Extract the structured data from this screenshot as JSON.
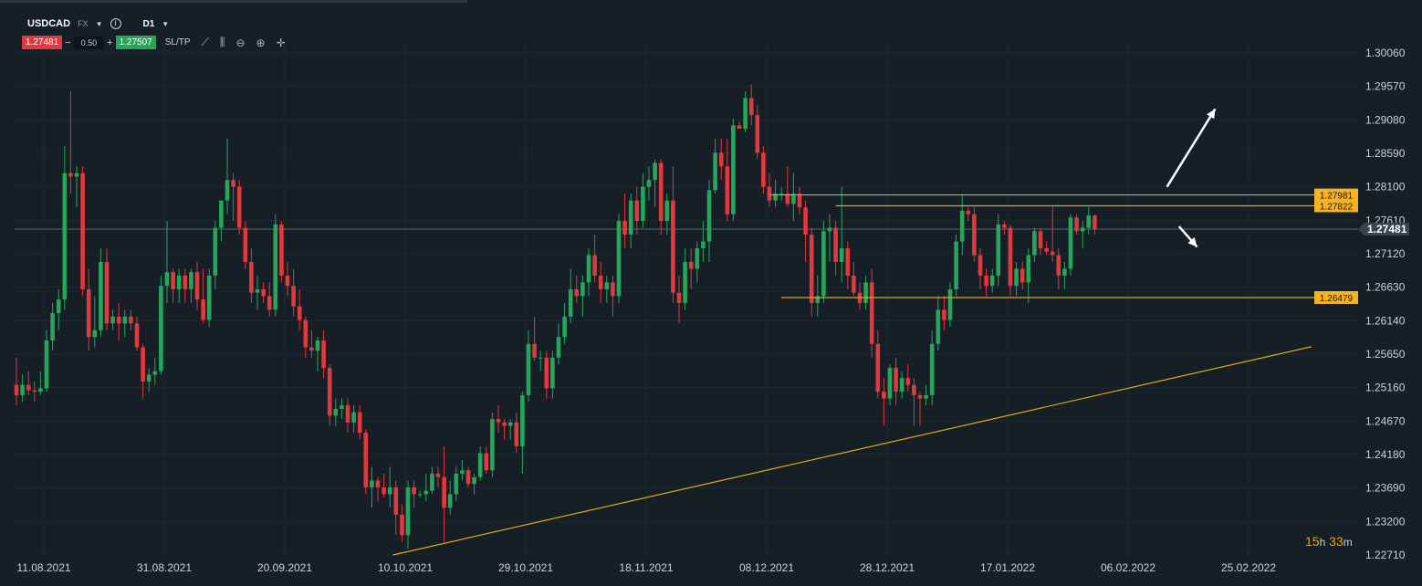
{
  "toolbar": {
    "symbol": "USDCAD",
    "market": "FX",
    "timeframe": "D1",
    "bid": "1.27481",
    "spread": "0.50",
    "ask": "1.27507",
    "sl_tp": "SL/TP",
    "minus": "−",
    "plus": "+"
  },
  "timer": {
    "hours": "15",
    "h": "h",
    "minutes": "33",
    "m": "m"
  },
  "colors": {
    "background": "#161e26",
    "bull": "#26a65b",
    "bear": "#e0393e",
    "trend": "#e0a81c",
    "level_label": "#f5b324",
    "price_label": "#3a434d"
  },
  "chart_data": {
    "type": "candlestick",
    "symbol": "USDCAD",
    "timeframe": "D1",
    "y_ticks": [
      "1.30060",
      "1.29570",
      "1.29080",
      "1.28590",
      "1.28100",
      "1.27610",
      "1.27120",
      "1.26630",
      "1.26140",
      "1.25650",
      "1.25160",
      "1.24670",
      "1.24180",
      "1.23690",
      "1.23200",
      "1.22710"
    ],
    "ylim": [
      1.2271,
      1.3006
    ],
    "x_ticks": [
      "11.08.2021",
      "31.08.2021",
      "20.09.2021",
      "10.10.2021",
      "29.10.2021",
      "18.11.2021",
      "08.12.2021",
      "28.12.2021",
      "17.01.2022",
      "06.02.2022",
      "25.02.2022"
    ],
    "current_price": "1.27481",
    "levels": [
      {
        "label": "1.27981",
        "value": 1.27981,
        "from_index": 125
      },
      {
        "label": "1.27822",
        "value": 1.27822,
        "from_index": 136
      },
      {
        "label": "1.26479",
        "value": 1.26479,
        "from_index": 127
      }
    ],
    "trendline": {
      "from_index": 62.5,
      "from_value": 1.2271,
      "to_index": 215,
      "to_value": 1.2576
    },
    "arrows": [
      {
        "direction": "up",
        "from_index": 191,
        "from_value": 1.281,
        "to_index": 199,
        "to_value": 1.2924
      },
      {
        "direction": "down",
        "from_index": 193,
        "from_value": 1.2752,
        "to_index": 196,
        "to_value": 1.2722
      }
    ],
    "candles": [
      {
        "o": 1.252,
        "h": 1.256,
        "l": 1.249,
        "c": 1.2505
      },
      {
        "o": 1.2505,
        "h": 1.2535,
        "l": 1.2495,
        "c": 1.252
      },
      {
        "o": 1.252,
        "h": 1.254,
        "l": 1.2505,
        "c": 1.2512
      },
      {
        "o": 1.2512,
        "h": 1.2525,
        "l": 1.2495,
        "c": 1.251
      },
      {
        "o": 1.251,
        "h": 1.254,
        "l": 1.2505,
        "c": 1.2515
      },
      {
        "o": 1.2515,
        "h": 1.26,
        "l": 1.251,
        "c": 1.2585
      },
      {
        "o": 1.2585,
        "h": 1.264,
        "l": 1.257,
        "c": 1.2625
      },
      {
        "o": 1.2625,
        "h": 1.266,
        "l": 1.26,
        "c": 1.2645
      },
      {
        "o": 1.2645,
        "h": 1.287,
        "l": 1.263,
        "c": 1.283
      },
      {
        "o": 1.283,
        "h": 1.295,
        "l": 1.28,
        "c": 1.2825
      },
      {
        "o": 1.2825,
        "h": 1.284,
        "l": 1.278,
        "c": 1.283
      },
      {
        "o": 1.283,
        "h": 1.284,
        "l": 1.265,
        "c": 1.266
      },
      {
        "o": 1.266,
        "h": 1.269,
        "l": 1.257,
        "c": 1.259
      },
      {
        "o": 1.259,
        "h": 1.265,
        "l": 1.2575,
        "c": 1.26
      },
      {
        "o": 1.26,
        "h": 1.272,
        "l": 1.259,
        "c": 1.27
      },
      {
        "o": 1.27,
        "h": 1.272,
        "l": 1.26,
        "c": 1.261
      },
      {
        "o": 1.261,
        "h": 1.263,
        "l": 1.26,
        "c": 1.262
      },
      {
        "o": 1.262,
        "h": 1.264,
        "l": 1.2585,
        "c": 1.261
      },
      {
        "o": 1.261,
        "h": 1.263,
        "l": 1.259,
        "c": 1.262
      },
      {
        "o": 1.262,
        "h": 1.263,
        "l": 1.26,
        "c": 1.261
      },
      {
        "o": 1.261,
        "h": 1.262,
        "l": 1.257,
        "c": 1.2575
      },
      {
        "o": 1.2575,
        "h": 1.258,
        "l": 1.25,
        "c": 1.2525
      },
      {
        "o": 1.2525,
        "h": 1.2545,
        "l": 1.251,
        "c": 1.2535
      },
      {
        "o": 1.2535,
        "h": 1.256,
        "l": 1.252,
        "c": 1.254
      },
      {
        "o": 1.254,
        "h": 1.268,
        "l": 1.2535,
        "c": 1.2665
      },
      {
        "o": 1.2665,
        "h": 1.276,
        "l": 1.264,
        "c": 1.2685
      },
      {
        "o": 1.2685,
        "h": 1.269,
        "l": 1.264,
        "c": 1.266
      },
      {
        "o": 1.266,
        "h": 1.269,
        "l": 1.264,
        "c": 1.268
      },
      {
        "o": 1.268,
        "h": 1.269,
        "l": 1.264,
        "c": 1.266
      },
      {
        "o": 1.266,
        "h": 1.269,
        "l": 1.264,
        "c": 1.2685
      },
      {
        "o": 1.2685,
        "h": 1.27,
        "l": 1.263,
        "c": 1.2645
      },
      {
        "o": 1.2645,
        "h": 1.269,
        "l": 1.261,
        "c": 1.2615
      },
      {
        "o": 1.2615,
        "h": 1.269,
        "l": 1.2605,
        "c": 1.268
      },
      {
        "o": 1.268,
        "h": 1.276,
        "l": 1.266,
        "c": 1.275
      },
      {
        "o": 1.275,
        "h": 1.279,
        "l": 1.273,
        "c": 1.279
      },
      {
        "o": 1.279,
        "h": 1.288,
        "l": 1.277,
        "c": 1.282
      },
      {
        "o": 1.282,
        "h": 1.283,
        "l": 1.276,
        "c": 1.281
      },
      {
        "o": 1.281,
        "h": 1.282,
        "l": 1.274,
        "c": 1.275
      },
      {
        "o": 1.275,
        "h": 1.276,
        "l": 1.269,
        "c": 1.27
      },
      {
        "o": 1.27,
        "h": 1.272,
        "l": 1.264,
        "c": 1.2655
      },
      {
        "o": 1.2655,
        "h": 1.268,
        "l": 1.263,
        "c": 1.266
      },
      {
        "o": 1.266,
        "h": 1.267,
        "l": 1.264,
        "c": 1.265
      },
      {
        "o": 1.265,
        "h": 1.267,
        "l": 1.262,
        "c": 1.263
      },
      {
        "o": 1.263,
        "h": 1.277,
        "l": 1.262,
        "c": 1.2755
      },
      {
        "o": 1.2755,
        "h": 1.276,
        "l": 1.267,
        "c": 1.268
      },
      {
        "o": 1.268,
        "h": 1.27,
        "l": 1.265,
        "c": 1.2665
      },
      {
        "o": 1.2665,
        "h": 1.269,
        "l": 1.262,
        "c": 1.2635
      },
      {
        "o": 1.2635,
        "h": 1.266,
        "l": 1.26,
        "c": 1.2615
      },
      {
        "o": 1.2615,
        "h": 1.262,
        "l": 1.256,
        "c": 1.2575
      },
      {
        "o": 1.2575,
        "h": 1.26,
        "l": 1.256,
        "c": 1.257
      },
      {
        "o": 1.257,
        "h": 1.259,
        "l": 1.254,
        "c": 1.2585
      },
      {
        "o": 1.2585,
        "h": 1.26,
        "l": 1.253,
        "c": 1.2545
      },
      {
        "o": 1.2545,
        "h": 1.255,
        "l": 1.246,
        "c": 1.2475
      },
      {
        "o": 1.2475,
        "h": 1.25,
        "l": 1.246,
        "c": 1.2485
      },
      {
        "o": 1.2485,
        "h": 1.25,
        "l": 1.247,
        "c": 1.249
      },
      {
        "o": 1.249,
        "h": 1.25,
        "l": 1.245,
        "c": 1.2465
      },
      {
        "o": 1.2465,
        "h": 1.249,
        "l": 1.245,
        "c": 1.248
      },
      {
        "o": 1.248,
        "h": 1.249,
        "l": 1.244,
        "c": 1.245
      },
      {
        "o": 1.245,
        "h": 1.2455,
        "l": 1.236,
        "c": 1.237
      },
      {
        "o": 1.237,
        "h": 1.24,
        "l": 1.234,
        "c": 1.238
      },
      {
        "o": 1.238,
        "h": 1.2385,
        "l": 1.235,
        "c": 1.237
      },
      {
        "o": 1.237,
        "h": 1.239,
        "l": 1.2355,
        "c": 1.236
      },
      {
        "o": 1.236,
        "h": 1.24,
        "l": 1.234,
        "c": 1.237
      },
      {
        "o": 1.237,
        "h": 1.238,
        "l": 1.23,
        "c": 1.233
      },
      {
        "o": 1.233,
        "h": 1.2345,
        "l": 1.229,
        "c": 1.23
      },
      {
        "o": 1.23,
        "h": 1.238,
        "l": 1.228,
        "c": 1.237
      },
      {
        "o": 1.237,
        "h": 1.238,
        "l": 1.234,
        "c": 1.236
      },
      {
        "o": 1.236,
        "h": 1.2365,
        "l": 1.2355,
        "c": 1.236
      },
      {
        "o": 1.236,
        "h": 1.239,
        "l": 1.235,
        "c": 1.2365
      },
      {
        "o": 1.2365,
        "h": 1.24,
        "l": 1.236,
        "c": 1.239
      },
      {
        "o": 1.239,
        "h": 1.24,
        "l": 1.237,
        "c": 1.2385
      },
      {
        "o": 1.2385,
        "h": 1.243,
        "l": 1.229,
        "c": 1.234
      },
      {
        "o": 1.234,
        "h": 1.238,
        "l": 1.233,
        "c": 1.236
      },
      {
        "o": 1.236,
        "h": 1.24,
        "l": 1.235,
        "c": 1.239
      },
      {
        "o": 1.239,
        "h": 1.241,
        "l": 1.238,
        "c": 1.2395
      },
      {
        "o": 1.2395,
        "h": 1.24,
        "l": 1.237,
        "c": 1.2375
      },
      {
        "o": 1.2375,
        "h": 1.239,
        "l": 1.236,
        "c": 1.2385
      },
      {
        "o": 1.2385,
        "h": 1.243,
        "l": 1.238,
        "c": 1.242
      },
      {
        "o": 1.242,
        "h": 1.243,
        "l": 1.239,
        "c": 1.2395
      },
      {
        "o": 1.2395,
        "h": 1.248,
        "l": 1.2385,
        "c": 1.247
      },
      {
        "o": 1.247,
        "h": 1.249,
        "l": 1.245,
        "c": 1.2465
      },
      {
        "o": 1.2465,
        "h": 1.247,
        "l": 1.244,
        "c": 1.246
      },
      {
        "o": 1.246,
        "h": 1.247,
        "l": 1.244,
        "c": 1.2465
      },
      {
        "o": 1.2465,
        "h": 1.248,
        "l": 1.242,
        "c": 1.243
      },
      {
        "o": 1.243,
        "h": 1.251,
        "l": 1.239,
        "c": 1.2505
      },
      {
        "o": 1.2505,
        "h": 1.26,
        "l": 1.2495,
        "c": 1.258
      },
      {
        "o": 1.258,
        "h": 1.262,
        "l": 1.2555,
        "c": 1.256
      },
      {
        "o": 1.256,
        "h": 1.257,
        "l": 1.254,
        "c": 1.256
      },
      {
        "o": 1.256,
        "h": 1.257,
        "l": 1.25,
        "c": 1.2515
      },
      {
        "o": 1.2515,
        "h": 1.257,
        "l": 1.25,
        "c": 1.256
      },
      {
        "o": 1.256,
        "h": 1.261,
        "l": 1.255,
        "c": 1.259
      },
      {
        "o": 1.259,
        "h": 1.264,
        "l": 1.258,
        "c": 1.262
      },
      {
        "o": 1.262,
        "h": 1.269,
        "l": 1.261,
        "c": 1.266
      },
      {
        "o": 1.266,
        "h": 1.268,
        "l": 1.264,
        "c": 1.265
      },
      {
        "o": 1.265,
        "h": 1.268,
        "l": 1.262,
        "c": 1.267
      },
      {
        "o": 1.267,
        "h": 1.272,
        "l": 1.265,
        "c": 1.271
      },
      {
        "o": 1.271,
        "h": 1.274,
        "l": 1.267,
        "c": 1.268
      },
      {
        "o": 1.268,
        "h": 1.27,
        "l": 1.264,
        "c": 1.266
      },
      {
        "o": 1.266,
        "h": 1.268,
        "l": 1.264,
        "c": 1.267
      },
      {
        "o": 1.267,
        "h": 1.268,
        "l": 1.262,
        "c": 1.265
      },
      {
        "o": 1.265,
        "h": 1.277,
        "l": 1.264,
        "c": 1.276
      },
      {
        "o": 1.276,
        "h": 1.28,
        "l": 1.272,
        "c": 1.274
      },
      {
        "o": 1.274,
        "h": 1.28,
        "l": 1.272,
        "c": 1.279
      },
      {
        "o": 1.279,
        "h": 1.281,
        "l": 1.274,
        "c": 1.276
      },
      {
        "o": 1.276,
        "h": 1.283,
        "l": 1.275,
        "c": 1.281
      },
      {
        "o": 1.281,
        "h": 1.284,
        "l": 1.279,
        "c": 1.282
      },
      {
        "o": 1.282,
        "h": 1.285,
        "l": 1.278,
        "c": 1.2845
      },
      {
        "o": 1.2845,
        "h": 1.285,
        "l": 1.274,
        "c": 1.276
      },
      {
        "o": 1.276,
        "h": 1.28,
        "l": 1.274,
        "c": 1.279
      },
      {
        "o": 1.279,
        "h": 1.284,
        "l": 1.264,
        "c": 1.2655
      },
      {
        "o": 1.2655,
        "h": 1.268,
        "l": 1.261,
        "c": 1.264
      },
      {
        "o": 1.264,
        "h": 1.272,
        "l": 1.263,
        "c": 1.27
      },
      {
        "o": 1.27,
        "h": 1.272,
        "l": 1.266,
        "c": 1.269
      },
      {
        "o": 1.269,
        "h": 1.273,
        "l": 1.267,
        "c": 1.272
      },
      {
        "o": 1.272,
        "h": 1.276,
        "l": 1.27,
        "c": 1.273
      },
      {
        "o": 1.273,
        "h": 1.282,
        "l": 1.27,
        "c": 1.2805
      },
      {
        "o": 1.2805,
        "h": 1.288,
        "l": 1.28,
        "c": 1.286
      },
      {
        "o": 1.286,
        "h": 1.288,
        "l": 1.282,
        "c": 1.284
      },
      {
        "o": 1.284,
        "h": 1.288,
        "l": 1.276,
        "c": 1.277
      },
      {
        "o": 1.277,
        "h": 1.291,
        "l": 1.276,
        "c": 1.29
      },
      {
        "o": 1.29,
        "h": 1.2905,
        "l": 1.2895,
        "c": 1.2895
      },
      {
        "o": 1.2895,
        "h": 1.295,
        "l": 1.289,
        "c": 1.294
      },
      {
        "o": 1.294,
        "h": 1.296,
        "l": 1.29,
        "c": 1.2915
      },
      {
        "o": 1.2915,
        "h": 1.293,
        "l": 1.285,
        "c": 1.286
      },
      {
        "o": 1.286,
        "h": 1.287,
        "l": 1.28,
        "c": 1.281
      },
      {
        "o": 1.281,
        "h": 1.283,
        "l": 1.278,
        "c": 1.279
      },
      {
        "o": 1.279,
        "h": 1.282,
        "l": 1.278,
        "c": 1.28
      },
      {
        "o": 1.28,
        "h": 1.281,
        "l": 1.279,
        "c": 1.28
      },
      {
        "o": 1.28,
        "h": 1.284,
        "l": 1.278,
        "c": 1.2785
      },
      {
        "o": 1.2785,
        "h": 1.283,
        "l": 1.276,
        "c": 1.28
      },
      {
        "o": 1.28,
        "h": 1.281,
        "l": 1.277,
        "c": 1.278
      },
      {
        "o": 1.278,
        "h": 1.279,
        "l": 1.27,
        "c": 1.274
      },
      {
        "o": 1.274,
        "h": 1.275,
        "l": 1.262,
        "c": 1.264
      },
      {
        "o": 1.264,
        "h": 1.268,
        "l": 1.262,
        "c": 1.265
      },
      {
        "o": 1.265,
        "h": 1.276,
        "l": 1.264,
        "c": 1.2745
      },
      {
        "o": 1.2745,
        "h": 1.277,
        "l": 1.27,
        "c": 1.275
      },
      {
        "o": 1.275,
        "h": 1.276,
        "l": 1.268,
        "c": 1.27
      },
      {
        "o": 1.27,
        "h": 1.281,
        "l": 1.267,
        "c": 1.272
      },
      {
        "o": 1.272,
        "h": 1.273,
        "l": 1.266,
        "c": 1.268
      },
      {
        "o": 1.268,
        "h": 1.27,
        "l": 1.265,
        "c": 1.2655
      },
      {
        "o": 1.2655,
        "h": 1.267,
        "l": 1.263,
        "c": 1.264
      },
      {
        "o": 1.264,
        "h": 1.268,
        "l": 1.263,
        "c": 1.267
      },
      {
        "o": 1.267,
        "h": 1.269,
        "l": 1.256,
        "c": 1.258
      },
      {
        "o": 1.258,
        "h": 1.26,
        "l": 1.25,
        "c": 1.251
      },
      {
        "o": 1.251,
        "h": 1.253,
        "l": 1.246,
        "c": 1.25
      },
      {
        "o": 1.25,
        "h": 1.255,
        "l": 1.249,
        "c": 1.2545
      },
      {
        "o": 1.2545,
        "h": 1.256,
        "l": 1.249,
        "c": 1.251
      },
      {
        "o": 1.251,
        "h": 1.254,
        "l": 1.25,
        "c": 1.253
      },
      {
        "o": 1.253,
        "h": 1.255,
        "l": 1.251,
        "c": 1.252
      },
      {
        "o": 1.252,
        "h": 1.253,
        "l": 1.246,
        "c": 1.2505
      },
      {
        "o": 1.2505,
        "h": 1.251,
        "l": 1.246,
        "c": 1.25
      },
      {
        "o": 1.25,
        "h": 1.252,
        "l": 1.249,
        "c": 1.2505
      },
      {
        "o": 1.2505,
        "h": 1.26,
        "l": 1.249,
        "c": 1.258
      },
      {
        "o": 1.258,
        "h": 1.265,
        "l": 1.257,
        "c": 1.263
      },
      {
        "o": 1.263,
        "h": 1.265,
        "l": 1.26,
        "c": 1.2615
      },
      {
        "o": 1.2615,
        "h": 1.267,
        "l": 1.2605,
        "c": 1.266
      },
      {
        "o": 1.266,
        "h": 1.274,
        "l": 1.265,
        "c": 1.273
      },
      {
        "o": 1.273,
        "h": 1.28,
        "l": 1.271,
        "c": 1.2775
      },
      {
        "o": 1.2775,
        "h": 1.278,
        "l": 1.276,
        "c": 1.277
      },
      {
        "o": 1.277,
        "h": 1.278,
        "l": 1.27,
        "c": 1.271
      },
      {
        "o": 1.271,
        "h": 1.272,
        "l": 1.266,
        "c": 1.268
      },
      {
        "o": 1.268,
        "h": 1.269,
        "l": 1.265,
        "c": 1.2665
      },
      {
        "o": 1.2665,
        "h": 1.269,
        "l": 1.2655,
        "c": 1.268
      },
      {
        "o": 1.268,
        "h": 1.277,
        "l": 1.2665,
        "c": 1.2755
      },
      {
        "o": 1.2755,
        "h": 1.276,
        "l": 1.274,
        "c": 1.275
      },
      {
        "o": 1.275,
        "h": 1.2755,
        "l": 1.265,
        "c": 1.2665
      },
      {
        "o": 1.2665,
        "h": 1.27,
        "l": 1.265,
        "c": 1.269
      },
      {
        "o": 1.269,
        "h": 1.27,
        "l": 1.266,
        "c": 1.267
      },
      {
        "o": 1.267,
        "h": 1.272,
        "l": 1.264,
        "c": 1.271
      },
      {
        "o": 1.271,
        "h": 1.275,
        "l": 1.27,
        "c": 1.2745
      },
      {
        "o": 1.2745,
        "h": 1.275,
        "l": 1.271,
        "c": 1.272
      },
      {
        "o": 1.272,
        "h": 1.273,
        "l": 1.271,
        "c": 1.2715
      },
      {
        "o": 1.2715,
        "h": 1.278,
        "l": 1.27,
        "c": 1.271
      },
      {
        "o": 1.271,
        "h": 1.272,
        "l": 1.266,
        "c": 1.268
      },
      {
        "o": 1.268,
        "h": 1.27,
        "l": 1.266,
        "c": 1.269
      },
      {
        "o": 1.269,
        "h": 1.277,
        "l": 1.268,
        "c": 1.2765
      },
      {
        "o": 1.2765,
        "h": 1.277,
        "l": 1.274,
        "c": 1.2745
      },
      {
        "o": 1.2745,
        "h": 1.276,
        "l": 1.272,
        "c": 1.275
      },
      {
        "o": 1.275,
        "h": 1.278,
        "l": 1.274,
        "c": 1.2768
      },
      {
        "o": 1.2768,
        "h": 1.277,
        "l": 1.274,
        "c": 1.2748
      }
    ]
  }
}
